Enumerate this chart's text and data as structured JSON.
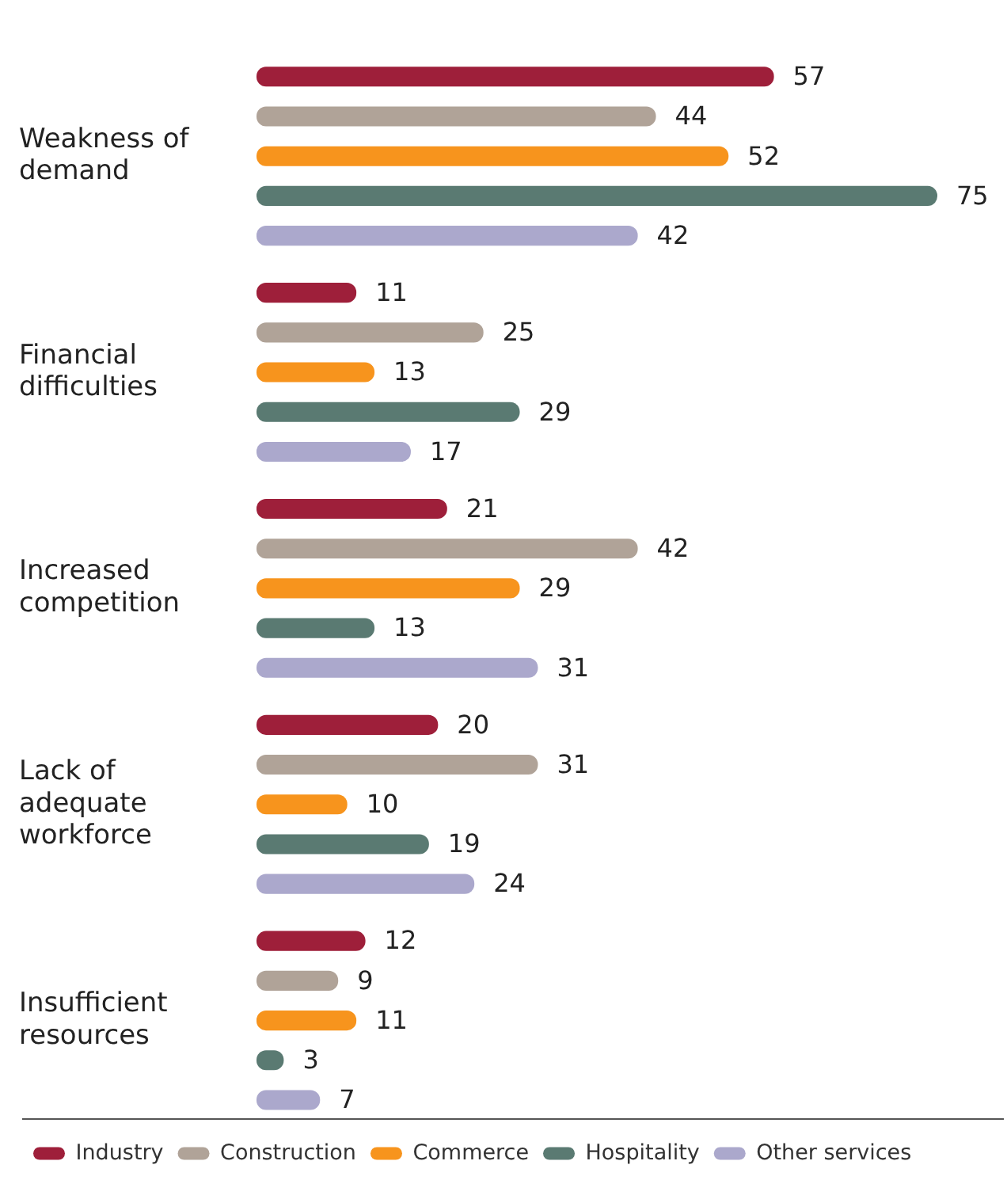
{
  "chart_data": {
    "type": "bar",
    "orientation": "horizontal",
    "categories": [
      "Weakness of demand",
      "Financial difficulties",
      "Increased competition",
      "Lack of adequate workforce",
      "Insufficient resources"
    ],
    "series": [
      {
        "name": "Industry",
        "color": "#9e1f3a",
        "values": [
          57,
          11,
          21,
          20,
          12
        ]
      },
      {
        "name": "Construction",
        "color": "#b0a398",
        "values": [
          44,
          25,
          42,
          31,
          9
        ]
      },
      {
        "name": "Commerce",
        "color": "#f7941d",
        "values": [
          52,
          13,
          29,
          10,
          11
        ]
      },
      {
        "name": "Hospitality",
        "color": "#5a7a72",
        "values": [
          75,
          29,
          13,
          19,
          3
        ]
      },
      {
        "name": "Other services",
        "color": "#aba8cc",
        "values": [
          42,
          17,
          31,
          24,
          7
        ]
      }
    ],
    "data_labels": true,
    "legend": "bottom",
    "grid": false,
    "tick_labels": "y"
  }
}
